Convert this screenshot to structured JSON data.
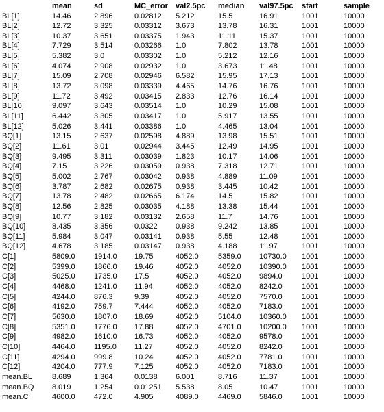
{
  "columns": [
    "",
    "mean",
    "sd",
    "MC_error",
    "val2.5pc",
    "median",
    "val97.5pc",
    "start",
    "sample"
  ],
  "rows": [
    [
      "BL[1]",
      "14.46",
      "2.896",
      "0.02812",
      "5.212",
      "15.5",
      "16.91",
      "1001",
      "10000"
    ],
    [
      "BL[2]",
      "12.72",
      "3.325",
      "0.03312",
      "3.673",
      "13.78",
      "16.31",
      "1001",
      "10000"
    ],
    [
      "BL[3]",
      "10.37",
      "3.651",
      "0.03375",
      "1.943",
      "11.11",
      "15.37",
      "1001",
      "10000"
    ],
    [
      "BL[4]",
      "7.729",
      "3.514",
      "0.03266",
      "1.0",
      "7.802",
      "13.78",
      "1001",
      "10000"
    ],
    [
      "BL[5]",
      "5.382",
      "3.0",
      "0.03302",
      "1.0",
      "5.212",
      "12.16",
      "1001",
      "10000"
    ],
    [
      "BL[6]",
      "4.074",
      "2.908",
      "0.02932",
      "1.0",
      "3.673",
      "11.48",
      "1001",
      "10000"
    ],
    [
      "BL[7]",
      "15.09",
      "2.708",
      "0.02946",
      "6.582",
      "15.95",
      "17.13",
      "1001",
      "10000"
    ],
    [
      "BL[8]",
      "13.72",
      "3.098",
      "0.03339",
      "4.465",
      "14.76",
      "16.76",
      "1001",
      "10000"
    ],
    [
      "BL[9]",
      "11.72",
      "3.492",
      "0.03415",
      "2.833",
      "12.76",
      "16.14",
      "1001",
      "10000"
    ],
    [
      "BL[10]",
      "9.097",
      "3.643",
      "0.03514",
      "1.0",
      "10.29",
      "15.08",
      "1001",
      "10000"
    ],
    [
      "BL[11]",
      "6.442",
      "3.305",
      "0.03417",
      "1.0",
      "5.917",
      "13.55",
      "1001",
      "10000"
    ],
    [
      "BL[12]",
      "5.026",
      "3.441",
      "0.03386",
      "1.0",
      "4.465",
      "13.04",
      "1001",
      "10000"
    ],
    [
      "BQ[1]",
      "13.15",
      "2.637",
      "0.02598",
      "4.889",
      "13.98",
      "15.51",
      "1001",
      "10000"
    ],
    [
      "BQ[2]",
      "11.61",
      "3.01",
      "0.02944",
      "3.445",
      "12.49",
      "14.95",
      "1001",
      "10000"
    ],
    [
      "BQ[3]",
      "9.495",
      "3.311",
      "0.03039",
      "1.823",
      "10.17",
      "14.06",
      "1001",
      "10000"
    ],
    [
      "BQ[4]",
      "7.15",
      "3.226",
      "0.03059",
      "0.938",
      "7.318",
      "12.71",
      "1001",
      "10000"
    ],
    [
      "BQ[5]",
      "5.002",
      "2.767",
      "0.03042",
      "0.938",
      "4.889",
      "11.09",
      "1001",
      "10000"
    ],
    [
      "BQ[6]",
      "3.787",
      "2.682",
      "0.02675",
      "0.938",
      "3.445",
      "10.42",
      "1001",
      "10000"
    ],
    [
      "BQ[7]",
      "13.78",
      "2.482",
      "0.02665",
      "6.174",
      "14.5",
      "15.82",
      "1001",
      "10000"
    ],
    [
      "BQ[8]",
      "12.56",
      "2.825",
      "0.03035",
      "4.188",
      "13.38",
      "15.44",
      "1001",
      "10000"
    ],
    [
      "BQ[9]",
      "10.77",
      "3.182",
      "0.03132",
      "2.658",
      "11.7",
      "14.76",
      "1001",
      "10000"
    ],
    [
      "BQ[10]",
      "8.435",
      "3.356",
      "0.0322",
      "0.938",
      "9.242",
      "13.85",
      "1001",
      "10000"
    ],
    [
      "BQ[11]",
      "5.984",
      "3.047",
      "0.03141",
      "0.938",
      "5.55",
      "12.48",
      "1001",
      "10000"
    ],
    [
      "BQ[12]",
      "4.678",
      "3.185",
      "0.03147",
      "0.938",
      "4.188",
      "11.97",
      "1001",
      "10000"
    ],
    [
      "C[1]",
      "5809.0",
      "1914.0",
      "19.75",
      "4052.0",
      "5359.0",
      "10730.0",
      "1001",
      "10000"
    ],
    [
      "C[2]",
      "5399.0",
      "1866.0",
      "19.46",
      "4052.0",
      "4052.0",
      "10390.0",
      "1001",
      "10000"
    ],
    [
      "C[3]",
      "5025.0",
      "1735.0",
      "17.5",
      "4052.0",
      "4052.0",
      "9894.0",
      "1001",
      "10000"
    ],
    [
      "C[4]",
      "4468.0",
      "1241.0",
      "11.94",
      "4052.0",
      "4052.0",
      "8242.0",
      "1001",
      "10000"
    ],
    [
      "C[5]",
      "4244.0",
      "876.3",
      "9.39",
      "4052.0",
      "4052.0",
      "7570.0",
      "1001",
      "10000"
    ],
    [
      "C[6]",
      "4192.0",
      "759.7",
      "7.444",
      "4052.0",
      "4052.0",
      "7183.0",
      "1001",
      "10000"
    ],
    [
      "C[7]",
      "5630.0",
      "1807.0",
      "18.69",
      "4052.0",
      "5104.0",
      "10360.0",
      "1001",
      "10000"
    ],
    [
      "C[8]",
      "5351.0",
      "1776.0",
      "17.88",
      "4052.0",
      "4701.0",
      "10200.0",
      "1001",
      "10000"
    ],
    [
      "C[9]",
      "4982.0",
      "1610.0",
      "16.73",
      "4052.0",
      "4052.0",
      "9578.0",
      "1001",
      "10000"
    ],
    [
      "C[10]",
      "4464.0",
      "1195.0",
      "11.27",
      "4052.0",
      "4052.0",
      "8242.0",
      "1001",
      "10000"
    ],
    [
      "C[11]",
      "4294.0",
      "999.8",
      "10.24",
      "4052.0",
      "4052.0",
      "7781.0",
      "1001",
      "10000"
    ],
    [
      "C[12]",
      "4204.0",
      "777.9",
      "7.125",
      "4052.0",
      "4052.0",
      "7183.0",
      "1001",
      "10000"
    ],
    [
      "mean.BL",
      "8.689",
      "1.364",
      "0.0138",
      "6.001",
      "8.716",
      "11.37",
      "1001",
      "10000"
    ],
    [
      "mean.BQ",
      "8.019",
      "1.254",
      "0.01251",
      "5.538",
      "8.05",
      "10.47",
      "1001",
      "10000"
    ],
    [
      "mean.C",
      "4600.0",
      "472.0",
      "4.905",
      "4089.0",
      "4469.0",
      "5846.0",
      "1001",
      "10000"
    ]
  ]
}
